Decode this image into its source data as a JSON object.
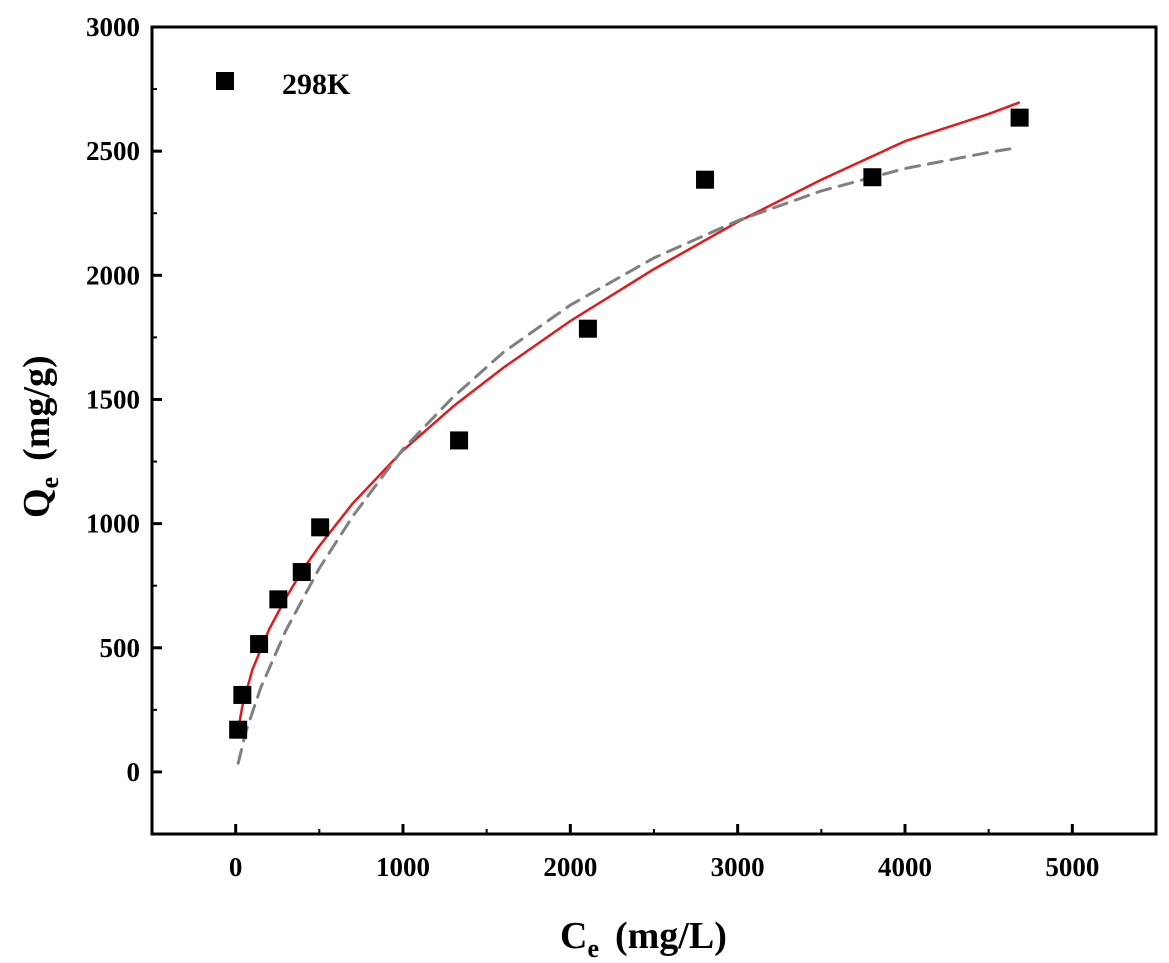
{
  "chart_data": {
    "type": "scatter",
    "title": "",
    "xlabel": {
      "main": "C",
      "sub": "e",
      "unit": "(mg/L)"
    },
    "ylabel": {
      "main": "Q",
      "sub": "e",
      "unit": "(mg/g)"
    },
    "xlim": [
      -500,
      5500
    ],
    "ylim": [
      -250,
      3000
    ],
    "xticks": [
      0,
      1000,
      2000,
      3000,
      4000,
      5000
    ],
    "yticks": [
      0,
      500,
      1000,
      1500,
      2000,
      2500,
      3000
    ],
    "grid": false,
    "legend": {
      "position": "top-left",
      "entries": [
        "298K"
      ]
    },
    "series": [
      {
        "name": "298K",
        "kind": "scatter",
        "marker": "square",
        "color": "#000000",
        "points": [
          {
            "x": 15,
            "y": 170
          },
          {
            "x": 40,
            "y": 310
          },
          {
            "x": 140,
            "y": 515
          },
          {
            "x": 255,
            "y": 695
          },
          {
            "x": 395,
            "y": 805
          },
          {
            "x": 505,
            "y": 985
          },
          {
            "x": 1335,
            "y": 1335
          },
          {
            "x": 2105,
            "y": 1785
          },
          {
            "x": 2805,
            "y": 2385
          },
          {
            "x": 3805,
            "y": 2395
          },
          {
            "x": 4685,
            "y": 2635
          }
        ]
      },
      {
        "name": "fit-solid",
        "kind": "line",
        "style": "solid",
        "color": "#e31a1c",
        "points": [
          {
            "x": 15,
            "y": 170
          },
          {
            "x": 40,
            "y": 266
          },
          {
            "x": 100,
            "y": 412
          },
          {
            "x": 200,
            "y": 574
          },
          {
            "x": 300,
            "y": 701
          },
          {
            "x": 400,
            "y": 813
          },
          {
            "x": 500,
            "y": 910
          },
          {
            "x": 700,
            "y": 1082
          },
          {
            "x": 1000,
            "y": 1295
          },
          {
            "x": 1300,
            "y": 1472
          },
          {
            "x": 1600,
            "y": 1628
          },
          {
            "x": 2000,
            "y": 1816
          },
          {
            "x": 2500,
            "y": 2025
          },
          {
            "x": 3000,
            "y": 2215
          },
          {
            "x": 3500,
            "y": 2385
          },
          {
            "x": 4000,
            "y": 2540
          },
          {
            "x": 4500,
            "y": 2650
          },
          {
            "x": 4680,
            "y": 2695
          }
        ]
      },
      {
        "name": "fit-dashed",
        "kind": "line",
        "style": "dashed",
        "color": "#808080",
        "points": [
          {
            "x": 15,
            "y": 35
          },
          {
            "x": 60,
            "y": 160
          },
          {
            "x": 150,
            "y": 340
          },
          {
            "x": 300,
            "y": 570
          },
          {
            "x": 500,
            "y": 820
          },
          {
            "x": 700,
            "y": 1030
          },
          {
            "x": 1000,
            "y": 1300
          },
          {
            "x": 1300,
            "y": 1510
          },
          {
            "x": 1600,
            "y": 1690
          },
          {
            "x": 2000,
            "y": 1880
          },
          {
            "x": 2500,
            "y": 2070
          },
          {
            "x": 3000,
            "y": 2220
          },
          {
            "x": 3500,
            "y": 2340
          },
          {
            "x": 4000,
            "y": 2430
          },
          {
            "x": 4500,
            "y": 2495
          },
          {
            "x": 4680,
            "y": 2515
          }
        ]
      }
    ]
  }
}
